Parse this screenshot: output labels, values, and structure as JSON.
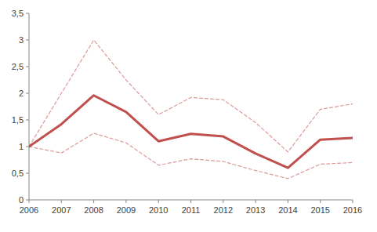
{
  "chart_data": {
    "type": "line",
    "x": [
      2006,
      2007,
      2008,
      2009,
      2010,
      2011,
      2012,
      2013,
      2014,
      2015,
      2016
    ],
    "xlim": [
      2006,
      2016
    ],
    "xticks": [
      2006,
      2007,
      2008,
      2009,
      2010,
      2011,
      2012,
      2013,
      2014,
      2015,
      2016
    ],
    "ylim": [
      0,
      3.5
    ],
    "yticks": [
      0,
      {
        "value": 0.5,
        "label": "0,5"
      },
      1,
      {
        "value": 1.5,
        "label": "1,5"
      },
      2,
      {
        "value": 2.5,
        "label": "2,5"
      },
      3,
      {
        "value": 3.5,
        "label": "3,5"
      }
    ],
    "grid": false,
    "series": [
      {
        "color": "#dc9a98",
        "line_style": "dashed",
        "values": [
          1.0,
          2.0,
          3.0,
          2.25,
          1.6,
          1.92,
          1.88,
          1.45,
          0.9,
          1.7,
          1.8
        ]
      },
      {
        "color": "#dc9a98",
        "line_style": "dashed",
        "values": [
          1.0,
          0.88,
          1.25,
          1.07,
          0.65,
          0.77,
          0.72,
          0.55,
          0.4,
          0.67,
          0.7
        ]
      },
      {
        "color": "#c0504d",
        "line_style": "solid",
        "values": [
          1.0,
          1.42,
          1.96,
          1.65,
          1.1,
          1.24,
          1.19,
          0.87,
          0.6,
          1.13,
          1.16
        ]
      }
    ]
  }
}
